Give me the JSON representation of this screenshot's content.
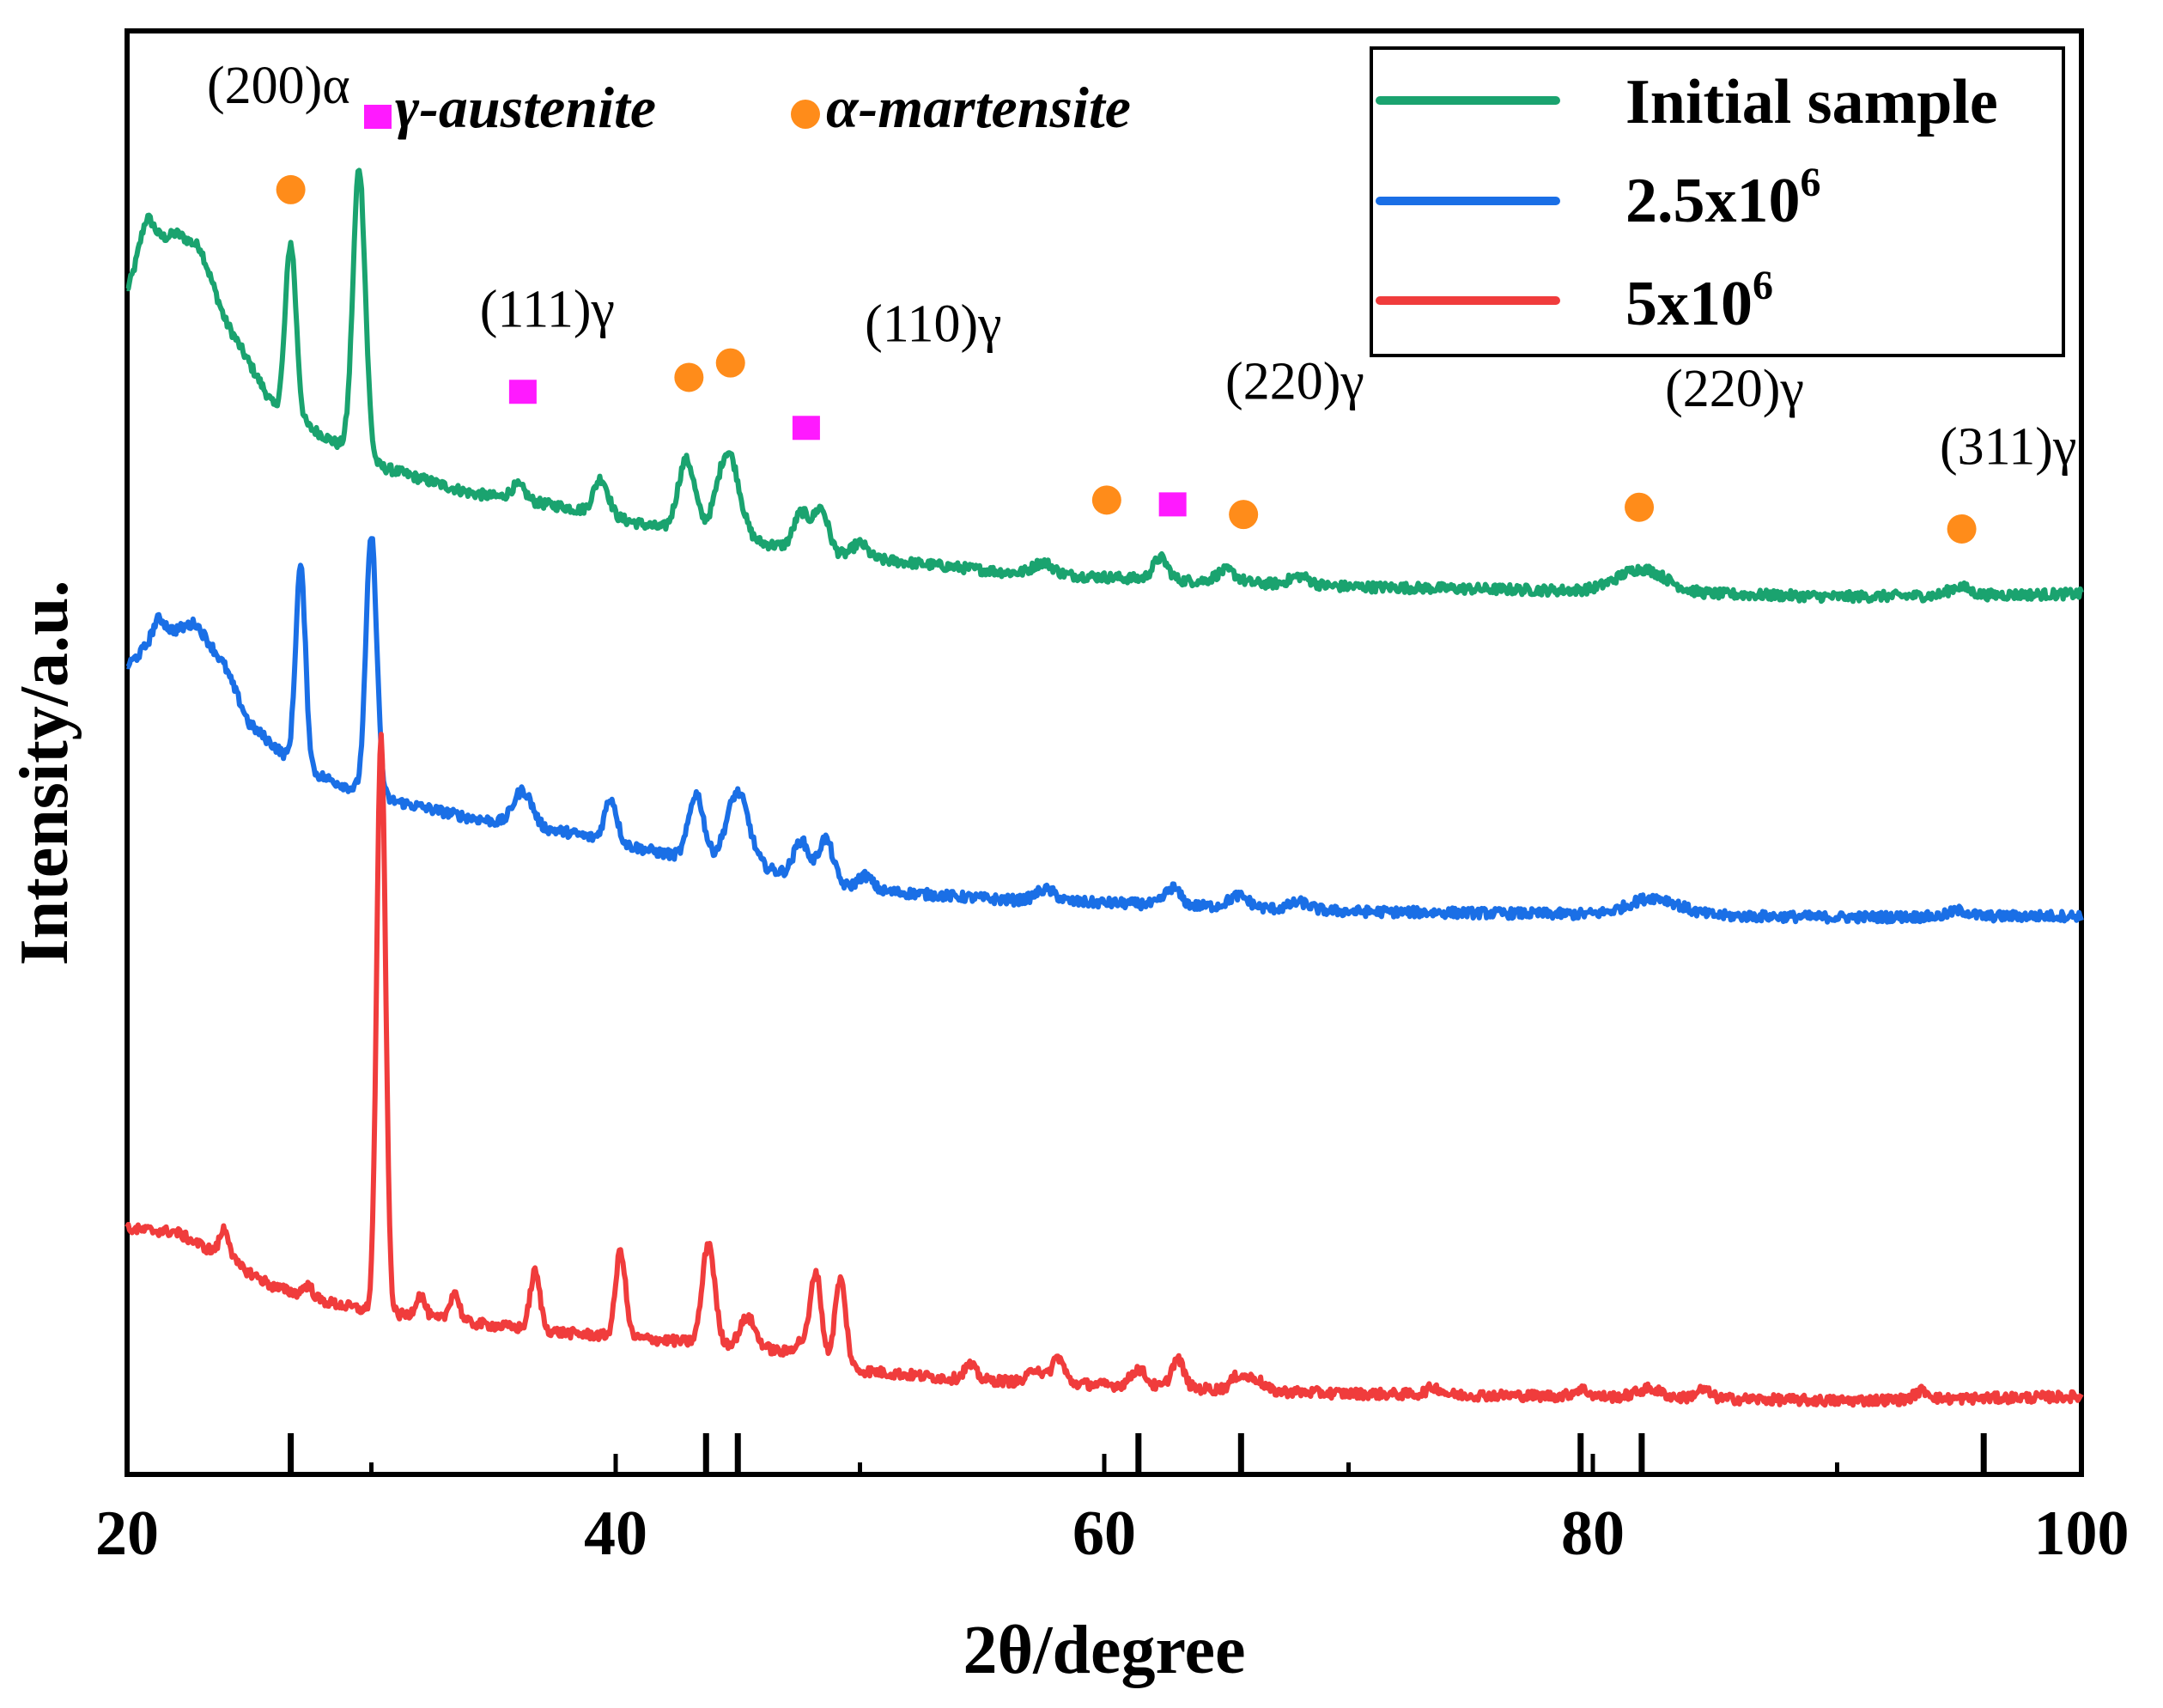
{
  "chart_data": {
    "type": "line",
    "title": "",
    "xlabel": "2θ/degree",
    "ylabel": "Intensity/a.u.",
    "xlim": [
      20,
      100
    ],
    "ylim": [
      0,
      100
    ],
    "x_ticks": [
      "20",
      "40",
      "60",
      "80",
      "100"
    ],
    "y_ticks_shown": false,
    "legend_position": "top-right",
    "series": [
      {
        "name": "Initial sample",
        "legend_label": "Initial sample",
        "legend_base": "Initial sample",
        "legend_sup": "",
        "color": "#1aa36f",
        "baseline": [
          [
            20,
            82
          ],
          [
            20.8,
            85
          ],
          [
            22,
            86
          ],
          [
            23,
            85
          ],
          [
            24,
            80
          ],
          [
            26,
            74
          ],
          [
            28,
            72
          ],
          [
            30,
            70
          ],
          [
            34,
            68
          ],
          [
            38,
            67
          ],
          [
            42,
            65.5
          ],
          [
            46,
            64.5
          ],
          [
            50,
            63.5
          ],
          [
            56,
            62.5
          ],
          [
            62,
            62
          ],
          [
            70,
            61.5
          ],
          [
            80,
            61.2
          ],
          [
            90,
            60.8
          ],
          [
            100,
            61
          ]
        ],
        "peaks": [
          [
            20.8,
            2,
            0.3
          ],
          [
            26.7,
            12,
            0.22
          ],
          [
            29.5,
            20,
            0.25
          ],
          [
            36,
            1,
            0.3
          ],
          [
            39.4,
            2.5,
            0.3
          ],
          [
            42.9,
            5,
            0.35
          ],
          [
            44.6,
            6,
            0.45
          ],
          [
            47.6,
            2.5,
            0.3
          ],
          [
            48.4,
            3,
            0.3
          ],
          [
            50,
            1,
            0.3
          ],
          [
            57.5,
            0.8,
            0.4
          ],
          [
            62.3,
            1.5,
            0.3
          ],
          [
            65,
            0.8,
            0.4
          ],
          [
            68,
            0.6,
            0.4
          ],
          [
            82,
            1.6,
            1.0
          ],
          [
            95,
            0.6,
            0.4
          ]
        ]
      },
      {
        "name": "2.5x10^6",
        "legend_label": "2.5x10^6",
        "legend_base": "2.5x10",
        "legend_sup": "6",
        "color": "#1a6fe6",
        "baseline": [
          [
            20,
            56
          ],
          [
            21.2,
            58
          ],
          [
            22.8,
            59
          ],
          [
            24,
            56
          ],
          [
            25,
            52
          ],
          [
            27,
            49
          ],
          [
            30,
            47
          ],
          [
            34,
            45.5
          ],
          [
            38,
            44.5
          ],
          [
            42,
            43
          ],
          [
            46,
            42
          ],
          [
            50,
            40.5
          ],
          [
            56,
            39.8
          ],
          [
            62,
            39.5
          ],
          [
            70,
            39
          ],
          [
            80,
            38.8
          ],
          [
            90,
            38.6
          ],
          [
            100,
            38.7
          ]
        ],
        "peaks": [
          [
            21.3,
            1.2,
            0.25
          ],
          [
            27.1,
            14,
            0.2
          ],
          [
            30,
            18,
            0.22
          ],
          [
            36,
            1.5,
            0.3
          ],
          [
            36.4,
            1.5,
            0.3
          ],
          [
            39.8,
            3,
            0.25
          ],
          [
            43.3,
            4.5,
            0.3
          ],
          [
            45,
            5,
            0.45
          ],
          [
            47.6,
            2.5,
            0.3
          ],
          [
            48.6,
            3,
            0.3
          ],
          [
            50.2,
            1,
            0.3
          ],
          [
            57.6,
            0.8,
            0.4
          ],
          [
            62.8,
            1.2,
            0.3
          ],
          [
            65.5,
            0.8,
            0.4
          ],
          [
            68,
            0.5,
            0.4
          ],
          [
            82.5,
            1.2,
            1.0
          ],
          [
            95,
            0.4,
            0.4
          ]
        ]
      },
      {
        "name": "5x10^6",
        "legend_label": "5x10^6",
        "legend_base": "5x10",
        "legend_sup": "6",
        "color": "#f03c3c",
        "baseline": [
          [
            20,
            17
          ],
          [
            22,
            16.8
          ],
          [
            24,
            15
          ],
          [
            26,
            13
          ],
          [
            28,
            12
          ],
          [
            30,
            11.3
          ],
          [
            34,
            10.5
          ],
          [
            38,
            9.8
          ],
          [
            42,
            9.3
          ],
          [
            46,
            8.8
          ],
          [
            50,
            7.2
          ],
          [
            54,
            6.6
          ],
          [
            60,
            6.2
          ],
          [
            66,
            5.8
          ],
          [
            70,
            5.6
          ],
          [
            80,
            5.4
          ],
          [
            90,
            5.1
          ],
          [
            100,
            5.4
          ]
        ],
        "peaks": [
          [
            24,
            2,
            0.2
          ],
          [
            27.4,
            0.8,
            0.2
          ],
          [
            30.4,
            40,
            0.18
          ],
          [
            32,
            1.5,
            0.2
          ],
          [
            33.4,
            2,
            0.2
          ],
          [
            36.7,
            4,
            0.2
          ],
          [
            40.2,
            6,
            0.2
          ],
          [
            43.8,
            7,
            0.25
          ],
          [
            45.4,
            2,
            0.3
          ],
          [
            47.6,
            1,
            0.3
          ],
          [
            48.2,
            6,
            0.22
          ],
          [
            49.2,
            6,
            0.22
          ],
          [
            54.5,
            1,
            0.25
          ],
          [
            57.2,
            1,
            0.25
          ],
          [
            58.1,
            1.8,
            0.25
          ],
          [
            61.4,
            1.2,
            0.3
          ],
          [
            63,
            2,
            0.25
          ],
          [
            65.5,
            1,
            0.3
          ],
          [
            66.2,
            0.8,
            0.3
          ],
          [
            73.5,
            0.5,
            0.3
          ],
          [
            79.5,
            0.5,
            0.3
          ],
          [
            82.3,
            0.6,
            0.5
          ],
          [
            84.5,
            0.6,
            0.3
          ],
          [
            93.5,
            0.6,
            0.3
          ]
        ]
      }
    ],
    "marker_legend": [
      {
        "shape": "square",
        "color": "#ff1aff",
        "label": "γ-austenite"
      },
      {
        "shape": "circle",
        "color": "#ff8c1a",
        "label": "α-martensite"
      }
    ],
    "phase_markers": [
      {
        "phase": "α",
        "x": 26.7,
        "y": 89
      },
      {
        "phase": "γ",
        "x": 36.2,
        "y": 75
      },
      {
        "phase": "α",
        "x": 43.0,
        "y": 76
      },
      {
        "phase": "α",
        "x": 44.7,
        "y": 77
      },
      {
        "phase": "γ",
        "x": 47.8,
        "y": 72.5
      },
      {
        "phase": "α",
        "x": 60.1,
        "y": 67.5
      },
      {
        "phase": "γ",
        "x": 62.8,
        "y": 67.2
      },
      {
        "phase": "α",
        "x": 65.7,
        "y": 66.5
      },
      {
        "phase": "α",
        "x": 81.9,
        "y": 67
      },
      {
        "phase": "α",
        "x": 95.1,
        "y": 65.5
      }
    ],
    "peak_labels": [
      {
        "text": "(200)α",
        "x": 26.2,
        "y": 95
      },
      {
        "text": "(111)γ",
        "x": 37.2,
        "y": 79.5
      },
      {
        "text": "(110)γ",
        "x": 53.0,
        "y": 78.5
      },
      {
        "text": "(220)γ",
        "x": 67.8,
        "y": 74.5
      },
      {
        "text": "(220)γ",
        "x": 85.8,
        "y": 74.0
      },
      {
        "text": "(311)γ",
        "x": 97.0,
        "y": 70.0
      }
    ],
    "reference_sticks": [
      26.7,
      43.7,
      45.0,
      61.4,
      65.6,
      79.5,
      82.0,
      96.0
    ]
  }
}
